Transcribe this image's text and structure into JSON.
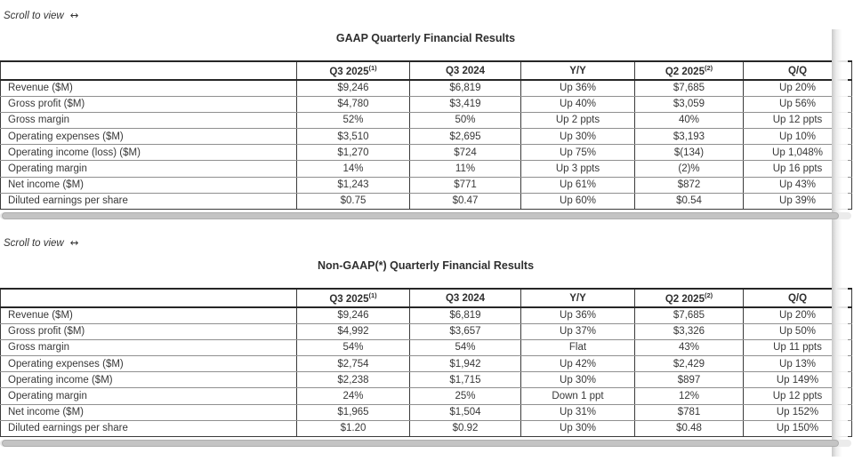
{
  "colors": {
    "text": "#383838",
    "border_dark": "#3a3a3a",
    "border_header": "#262626",
    "border_row": "#8f8f8f",
    "scrollbar_track": "#ebebeb",
    "scrollbar_thumb": "#c4c4c4"
  },
  "sections": [
    {
      "id": "gaap",
      "scroll_hint": "Scroll to view",
      "scroll_arrow": "↔",
      "title": "GAAP Quarterly Financial Results",
      "columns": [
        {
          "label": "Q3 2025",
          "sup": "(1)"
        },
        {
          "label": "Q3 2024",
          "sup": ""
        },
        {
          "label": "Y/Y",
          "sup": ""
        },
        {
          "label": "Q2 2025",
          "sup": "(2)"
        },
        {
          "label": "Q/Q",
          "sup": ""
        }
      ],
      "rows": [
        {
          "label": "Revenue ($M)",
          "values": [
            "$9,246",
            "$6,819",
            "Up 36%",
            "$7,685",
            "Up 20%"
          ]
        },
        {
          "label": "Gross profit ($M)",
          "values": [
            "$4,780",
            "$3,419",
            "Up 40%",
            "$3,059",
            "Up 56%"
          ]
        },
        {
          "label": "Gross margin",
          "values": [
            "52%",
            "50%",
            "Up 2 ppts",
            "40%",
            "Up 12 ppts"
          ]
        },
        {
          "label": "Operating expenses ($M)",
          "values": [
            "$3,510",
            "$2,695",
            "Up 30%",
            "$3,193",
            "Up 10%"
          ]
        },
        {
          "label": "Operating income (loss) ($M)",
          "values": [
            "$1,270",
            "$724",
            "Up 75%",
            "$(134)",
            "Up 1,048%"
          ]
        },
        {
          "label": "Operating margin",
          "values": [
            "14%",
            "11%",
            "Up 3 ppts",
            "(2)%",
            "Up 16 ppts"
          ]
        },
        {
          "label": "Net income ($M)",
          "values": [
            "$1,243",
            "$771",
            "Up 61%",
            "$872",
            "Up 43%"
          ]
        },
        {
          "label": "Diluted earnings per share",
          "values": [
            "$0.75",
            "$0.47",
            "Up 60%",
            "$0.54",
            "Up 39%"
          ]
        }
      ]
    },
    {
      "id": "non-gaap",
      "scroll_hint": "Scroll to view",
      "scroll_arrow": "↔",
      "title": "Non-GAAP(*) Quarterly Financial Results",
      "columns": [
        {
          "label": "Q3 2025",
          "sup": "(1)"
        },
        {
          "label": "Q3 2024",
          "sup": ""
        },
        {
          "label": "Y/Y",
          "sup": ""
        },
        {
          "label": "Q2 2025",
          "sup": "(2)"
        },
        {
          "label": "Q/Q",
          "sup": ""
        }
      ],
      "rows": [
        {
          "label": "Revenue ($M)",
          "values": [
            "$9,246",
            "$6,819",
            "Up 36%",
            "$7,685",
            "Up 20%"
          ]
        },
        {
          "label": "Gross profit ($M)",
          "values": [
            "$4,992",
            "$3,657",
            "Up 37%",
            "$3,326",
            "Up 50%"
          ]
        },
        {
          "label": "Gross margin",
          "values": [
            "54%",
            "54%",
            "Flat",
            "43%",
            "Up 11 ppts"
          ]
        },
        {
          "label": "Operating expenses ($M)",
          "values": [
            "$2,754",
            "$1,942",
            "Up 42%",
            "$2,429",
            "Up 13%"
          ]
        },
        {
          "label": "Operating income ($M)",
          "values": [
            "$2,238",
            "$1,715",
            "Up 30%",
            "$897",
            "Up 149%"
          ]
        },
        {
          "label": "Operating margin",
          "values": [
            "24%",
            "25%",
            "Down 1 ppt",
            "12%",
            "Up 12 ppts"
          ]
        },
        {
          "label": "Net income ($M)",
          "values": [
            "$1,965",
            "$1,504",
            "Up 31%",
            "$781",
            "Up 152%"
          ]
        },
        {
          "label": "Diluted earnings per share",
          "values": [
            "$1.20",
            "$0.92",
            "Up 30%",
            "$0.48",
            "Up 150%"
          ]
        }
      ]
    }
  ]
}
